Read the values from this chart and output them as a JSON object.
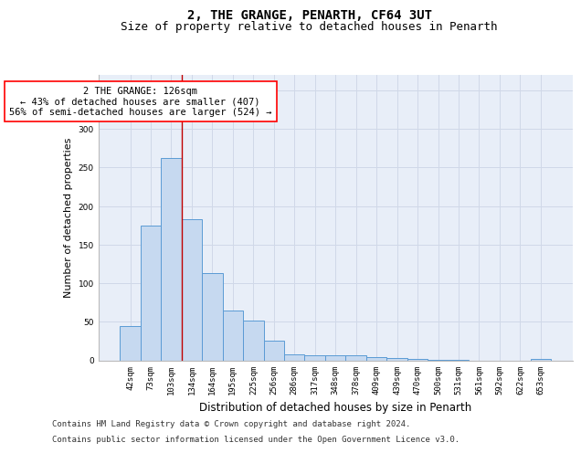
{
  "title_line1": "2, THE GRANGE, PENARTH, CF64 3UT",
  "title_line2": "Size of property relative to detached houses in Penarth",
  "xlabel": "Distribution of detached houses by size in Penarth",
  "ylabel": "Number of detached properties",
  "categories": [
    "42sqm",
    "73sqm",
    "103sqm",
    "134sqm",
    "164sqm",
    "195sqm",
    "225sqm",
    "256sqm",
    "286sqm",
    "317sqm",
    "348sqm",
    "378sqm",
    "409sqm",
    "439sqm",
    "470sqm",
    "500sqm",
    "531sqm",
    "561sqm",
    "592sqm",
    "622sqm",
    "653sqm"
  ],
  "values": [
    44,
    175,
    262,
    183,
    113,
    65,
    52,
    25,
    8,
    6,
    7,
    6,
    4,
    3,
    2,
    1,
    1,
    0,
    0,
    0,
    2
  ],
  "bar_color": "#c6d9f0",
  "bar_edge_color": "#5b9bd5",
  "vline_x_index": 2.5,
  "vline_color": "#c00000",
  "annotation_text": "2 THE GRANGE: 126sqm\n← 43% of detached houses are smaller (407)\n56% of semi-detached houses are larger (524) →",
  "annotation_box_color": "white",
  "annotation_box_edge_color": "red",
  "annotation_fontsize": 7.5,
  "ylim": [
    0,
    370
  ],
  "yticks": [
    0,
    50,
    100,
    150,
    200,
    250,
    300,
    350
  ],
  "grid_color": "#d0d8e8",
  "background_color": "#e8eef8",
  "footer_line1": "Contains HM Land Registry data © Crown copyright and database right 2024.",
  "footer_line2": "Contains public sector information licensed under the Open Government Licence v3.0.",
  "title_fontsize": 10,
  "subtitle_fontsize": 9,
  "tick_fontsize": 6.5,
  "ylabel_fontsize": 8,
  "xlabel_fontsize": 8.5,
  "footer_fontsize": 6.5
}
